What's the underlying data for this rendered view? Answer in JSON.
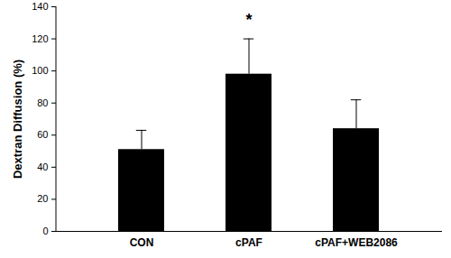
{
  "chart_data": {
    "type": "bar",
    "y_label": "Dextran Diffusion (%)",
    "categories": [
      "CON",
      "cPAF",
      "cPAF+WEB2086"
    ],
    "values": [
      51,
      98,
      64
    ],
    "errors": [
      12,
      22,
      18
    ],
    "color": "#000000",
    "ylim": [
      0,
      140
    ],
    "yticks": [
      0,
      20,
      40,
      60,
      80,
      100,
      120,
      140
    ],
    "grid": false,
    "annotations": [
      {
        "text": "*",
        "category": "cPAF",
        "y": 134
      }
    ]
  }
}
